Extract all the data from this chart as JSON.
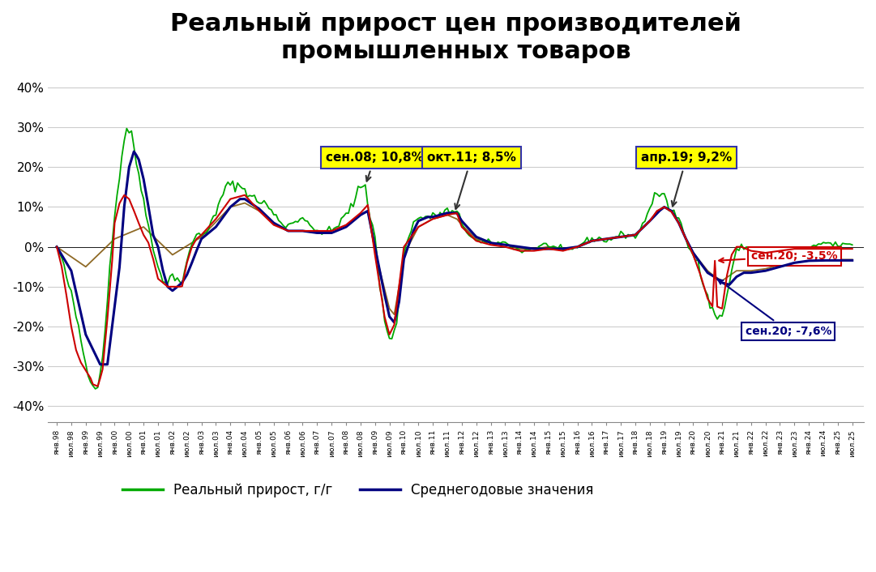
{
  "title": "Реальный прирост цен производителей\nпромышленных товаров",
  "title_fontsize": 22,
  "ylabel_ticks": [
    "-40%",
    "-30%",
    "-20%",
    "-10%",
    "0%",
    "10%",
    "20%",
    "30%",
    "40%"
  ],
  "yticks": [
    -0.4,
    -0.3,
    -0.2,
    -0.1,
    0.0,
    0.1,
    0.2,
    0.3,
    0.4
  ],
  "ylim": [
    -0.44,
    0.44
  ],
  "background_color": "#ffffff",
  "plot_bg_color": "#ffffff",
  "grid_color": "#cccccc",
  "line_green_color": "#00aa00",
  "line_navy_color": "#000080",
  "line_red_color": "#cc0000",
  "line_brown_color": "#7B5000",
  "legend_green": "Реальный прирост, г/г",
  "legend_navy": "Среднегодовые значения"
}
